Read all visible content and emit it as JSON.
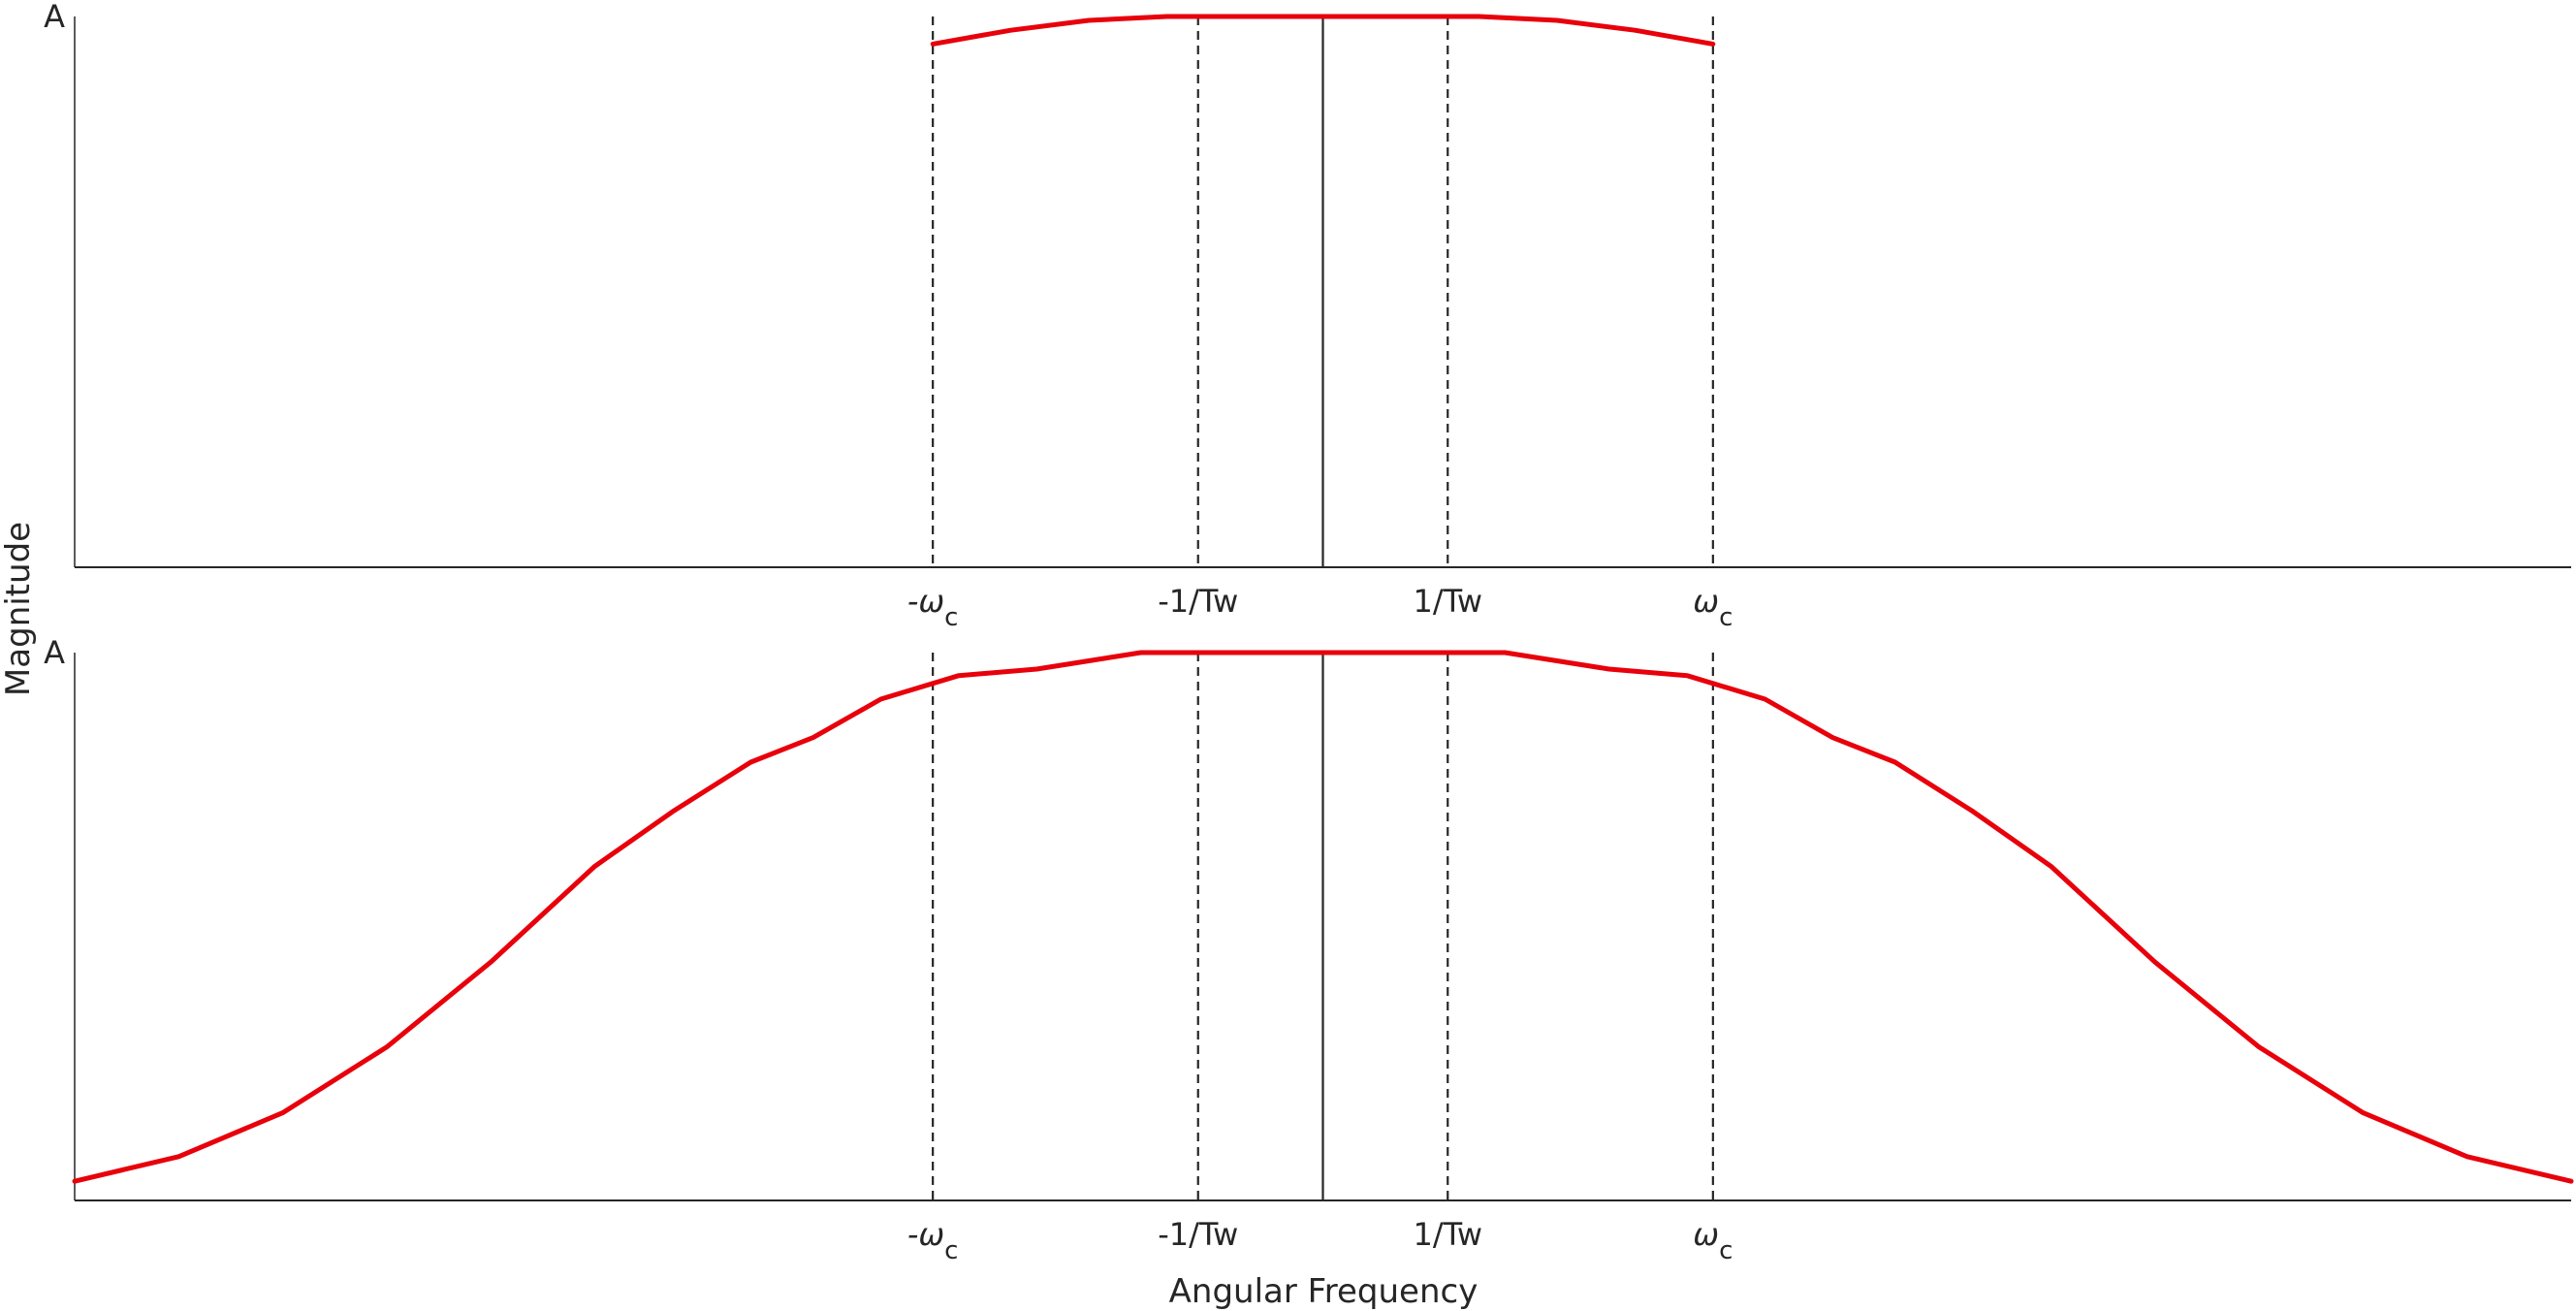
{
  "chart_data": [
    {
      "type": "line",
      "title": "",
      "ylabel": "Magnitude",
      "xlabel": "",
      "xlim": [
        -2.4,
        2.4
      ],
      "ylim": [
        0,
        1
      ],
      "y_tick_label": "A",
      "x_ticks": [
        {
          "value": -0.75,
          "label": "-ω",
          "sub": "c"
        },
        {
          "value": -0.24,
          "label": "-1/Tw",
          "sub": ""
        },
        {
          "value": 0.24,
          "label": "1/Tw",
          "sub": ""
        },
        {
          "value": 0.75,
          "label": "ω",
          "sub": "c"
        }
      ],
      "vlines": [
        {
          "x": -0.75,
          "style": "dashed"
        },
        {
          "x": -0.24,
          "style": "dashed"
        },
        {
          "x": 0,
          "style": "solid"
        },
        {
          "x": 0.24,
          "style": "dashed"
        },
        {
          "x": 0.75,
          "style": "dashed"
        }
      ],
      "series": [
        {
          "color": "#e8000b",
          "x": [
            -0.75,
            -0.6,
            -0.45,
            -0.3,
            -0.24,
            -0.15,
            0,
            0.15,
            0.24,
            0.3,
            0.45,
            0.6,
            0.75
          ],
          "y": [
            0.95,
            0.975,
            0.993,
            1.0,
            1.0,
            1.0,
            1.0,
            1.0,
            1.0,
            1.0,
            0.993,
            0.975,
            0.95
          ]
        }
      ]
    },
    {
      "type": "line",
      "title": "",
      "ylabel": "",
      "xlabel": "Angular Frequency",
      "xlim": [
        -2.4,
        2.4
      ],
      "ylim": [
        0,
        1
      ],
      "y_tick_label": "A",
      "x_ticks": [
        {
          "value": -0.75,
          "label": "-ω",
          "sub": "c"
        },
        {
          "value": -0.24,
          "label": "-1/Tw",
          "sub": ""
        },
        {
          "value": 0.24,
          "label": "1/Tw",
          "sub": ""
        },
        {
          "value": 0.75,
          "label": "ω",
          "sub": "c"
        }
      ],
      "vlines": [
        {
          "x": -0.75,
          "style": "dashed"
        },
        {
          "x": -0.24,
          "style": "dashed"
        },
        {
          "x": 0,
          "style": "solid"
        },
        {
          "x": 0.24,
          "style": "dashed"
        },
        {
          "x": 0.75,
          "style": "dashed"
        }
      ],
      "series": [
        {
          "color": "#e8000b",
          "x": [
            -2.4,
            -2.2,
            -2.0,
            -1.8,
            -1.6,
            -1.4,
            -1.25,
            -1.1,
            -0.98,
            -0.85,
            -0.7,
            -0.55,
            -0.35,
            -0.24,
            0,
            0.24,
            0.35,
            0.55,
            0.7,
            0.85,
            0.98,
            1.1,
            1.25,
            1.4,
            1.6,
            1.8,
            2.0,
            2.2,
            2.4
          ],
          "y": [
            0.035,
            0.08,
            0.16,
            0.28,
            0.435,
            0.61,
            0.71,
            0.8,
            0.845,
            0.915,
            0.958,
            0.97,
            1.0,
            1.0,
            1.0,
            1.0,
            1.0,
            0.97,
            0.958,
            0.915,
            0.845,
            0.8,
            0.71,
            0.61,
            0.435,
            0.28,
            0.16,
            0.08,
            0.035
          ]
        }
      ]
    }
  ]
}
